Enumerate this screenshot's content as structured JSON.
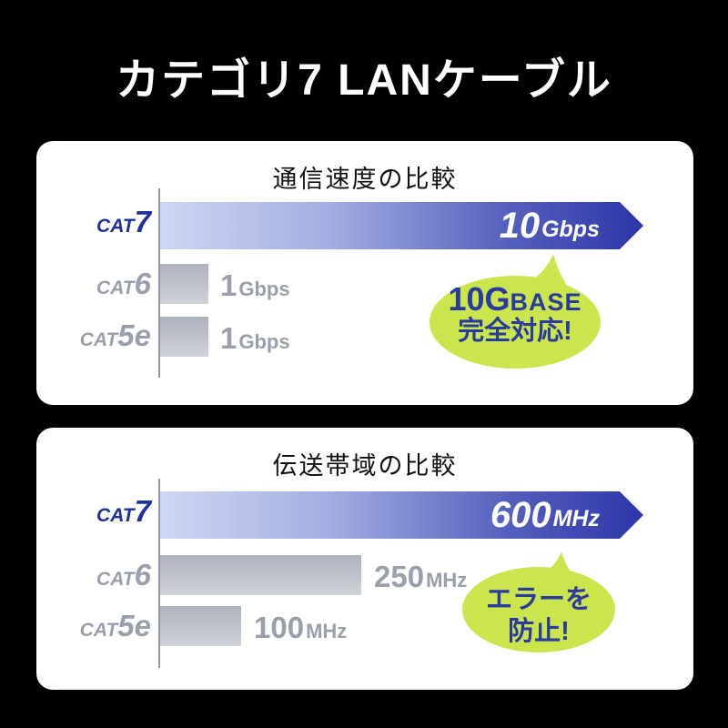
{
  "page": {
    "title": "カテゴリ7 LANケーブル"
  },
  "colors": {
    "background": "#000000",
    "panel_bg": "#ffffff",
    "blue_bar_gradient_start": "#cfd7f3",
    "blue_bar_gradient_end": "#2d35a8",
    "gray_bar_gradient_start": "#aeb2bd",
    "gray_bar_gradient_end": "#cfd2d8",
    "category_highlight_navy": "#1e2f9e",
    "category_gray": "#99a0ac",
    "axis_gray": "#8f95a0",
    "bubble_green": "#cbe54c",
    "bubble_text_navy": "#2b3a9e",
    "title_white": "#ffffff"
  },
  "chart_data": [
    {
      "type": "bar",
      "title": "通信速度の比較",
      "orientation": "horizontal",
      "categories": [
        "CAT7",
        "CAT6",
        "CAT5e"
      ],
      "values": [
        10,
        1,
        1
      ],
      "unit": "Gbps",
      "value_labels": [
        "10Gbps",
        "1Gbps",
        "1Gbps"
      ],
      "xlim": [
        0,
        10
      ],
      "grid": false,
      "legend": "none",
      "annotation": "10GBASE完全対応!",
      "highlight_category": "CAT7"
    },
    {
      "type": "bar",
      "title": "伝送帯域の比較",
      "orientation": "horizontal",
      "categories": [
        "CAT7",
        "CAT6",
        "CAT5e"
      ],
      "values": [
        600,
        250,
        100
      ],
      "unit": "MHz",
      "value_labels": [
        "600MHz",
        "250MHz",
        "100MHz"
      ],
      "xlim": [
        0,
        600
      ],
      "grid": false,
      "legend": "none",
      "annotation": "エラーを防止!",
      "highlight_category": "CAT7"
    }
  ],
  "panels": [
    {
      "title": "通信速度の比較",
      "rows": [
        {
          "cat_prefix": "CAT",
          "cat_num": "7",
          "value_number": "10",
          "value_unit": "Gbps"
        },
        {
          "cat_prefix": "CAT",
          "cat_num": "6",
          "value_number": "1",
          "value_unit": "Gbps"
        },
        {
          "cat_prefix": "CAT",
          "cat_num": "5e",
          "value_number": "1",
          "value_unit": "Gbps"
        }
      ],
      "bubble": {
        "line1_big": "10G",
        "line1_small": "BASE",
        "line2": "完全対応!"
      }
    },
    {
      "title": "伝送帯域の比較",
      "rows": [
        {
          "cat_prefix": "CAT",
          "cat_num": "7",
          "value_number": "600",
          "value_unit": "MHz"
        },
        {
          "cat_prefix": "CAT",
          "cat_num": "6",
          "value_number": "250",
          "value_unit": "MHz"
        },
        {
          "cat_prefix": "CAT",
          "cat_num": "5e",
          "value_number": "100",
          "value_unit": "MHz"
        }
      ],
      "bubble": {
        "line1": "エラーを",
        "line2": "防止!"
      }
    }
  ]
}
